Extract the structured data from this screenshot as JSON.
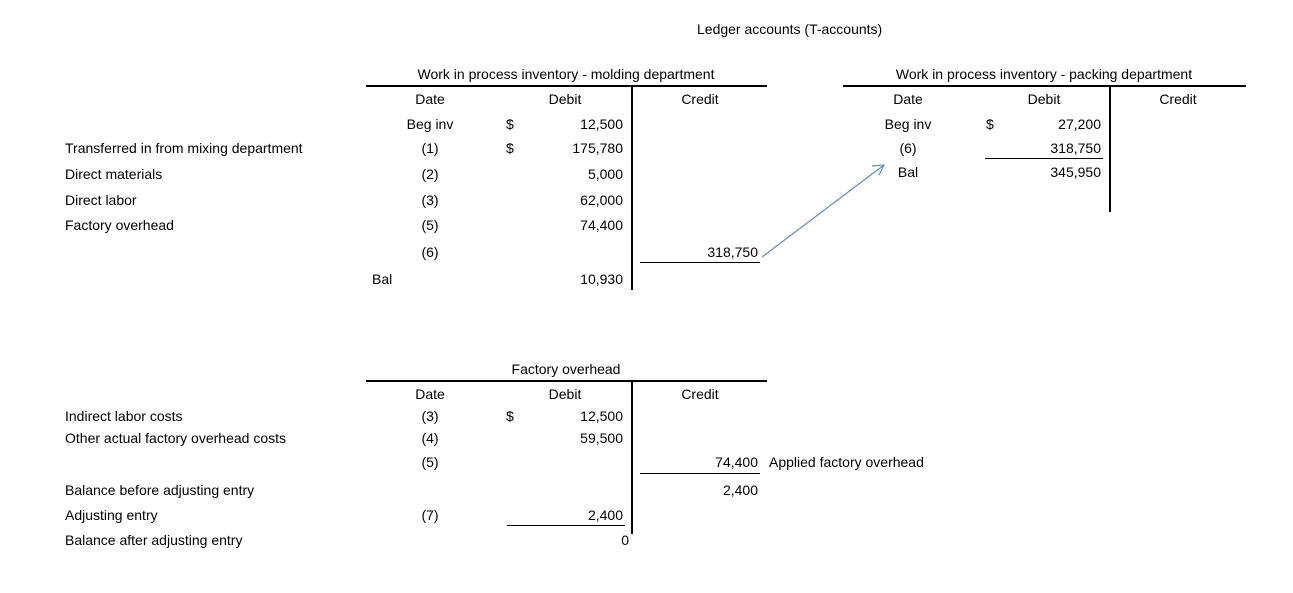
{
  "page_title": "Ledger accounts (T-accounts)",
  "molding": {
    "title": "Work in process inventory - molding department",
    "headers": {
      "date": "Date",
      "debit": "Debit",
      "credit": "Credit"
    },
    "rows": [
      {
        "label": "",
        "date": "Beg inv",
        "dollar": "$",
        "debit": "12,500",
        "credit": ""
      },
      {
        "label": "Transferred in from mixing department",
        "date": "(1)",
        "dollar": "$",
        "debit": "175,780",
        "credit": ""
      },
      {
        "label": "Direct materials",
        "date": "(2)",
        "dollar": "",
        "debit": "5,000",
        "credit": ""
      },
      {
        "label": "Direct labor",
        "date": "(3)",
        "dollar": "",
        "debit": "62,000",
        "credit": ""
      },
      {
        "label": "Factory overhead",
        "date": "(5)",
        "dollar": "",
        "debit": "74,400",
        "credit": ""
      },
      {
        "label": "",
        "date": "(6)",
        "dollar": "",
        "debit": "",
        "credit": "318,750"
      }
    ],
    "balance_label": "Bal",
    "balance_debit": "10,930"
  },
  "packing": {
    "title": "Work in process inventory - packing department",
    "headers": {
      "date": "Date",
      "debit": "Debit",
      "credit": "Credit"
    },
    "rows": [
      {
        "date": "Beg inv",
        "dollar": "$",
        "debit": "27,200"
      },
      {
        "date": "(6)",
        "dollar": "",
        "debit": "318,750"
      },
      {
        "date": "Bal",
        "dollar": "",
        "debit": "345,950"
      }
    ]
  },
  "overhead": {
    "title": "Factory overhead",
    "headers": {
      "date": "Date",
      "debit": "Debit",
      "credit": "Credit"
    },
    "rows": [
      {
        "label": "Indirect labor costs",
        "date": "(3)",
        "dollar": "$",
        "debit": "12,500",
        "credit": ""
      },
      {
        "label": "Other actual factory overhead costs",
        "date": "(4)",
        "dollar": "",
        "debit": "59,500",
        "credit": ""
      },
      {
        "label": "",
        "date": "(5)",
        "dollar": "",
        "debit": "",
        "credit": "74,400"
      },
      {
        "label": "Balance before adjusting entry",
        "date": "",
        "dollar": "",
        "debit": "",
        "credit": "2,400"
      },
      {
        "label": "Adjusting entry",
        "date": "(7)",
        "dollar": "",
        "debit": "2,400",
        "credit": ""
      },
      {
        "label": "Balance after adjusting entry",
        "date": "",
        "dollar": "",
        "debit": "0",
        "credit": ""
      }
    ],
    "applied_note": "Applied factory overhead"
  },
  "colors": {
    "arrow": "#5b8fc9",
    "text": "#000000"
  }
}
